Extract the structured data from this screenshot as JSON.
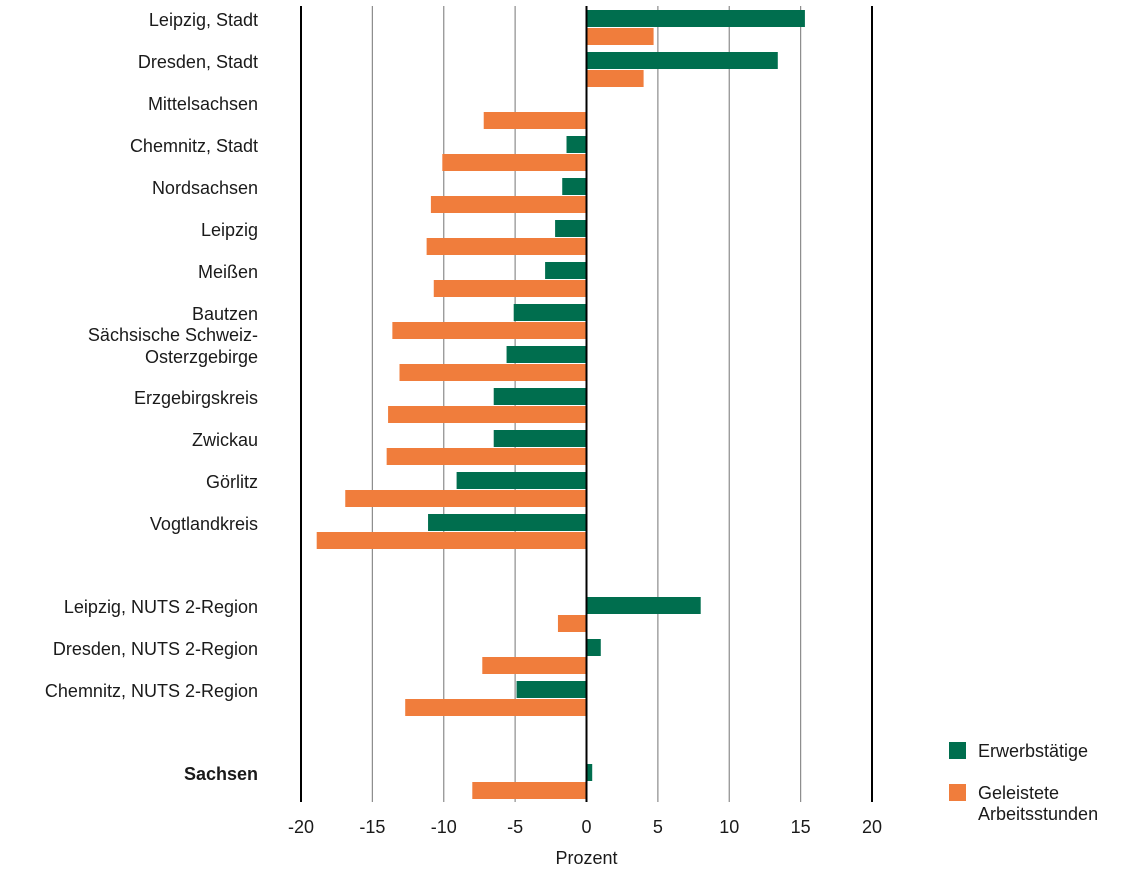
{
  "chart_data": {
    "type": "bar",
    "orientation": "horizontal",
    "xlabel": "Prozent",
    "xlim": [
      -20,
      20
    ],
    "xticks": [
      -20,
      -15,
      -10,
      -5,
      0,
      5,
      10,
      15,
      20
    ],
    "grid": true,
    "legend_position": "bottom-right",
    "categories": [
      {
        "label": "Leipzig, Stadt",
        "bold": false
      },
      {
        "label": "Dresden, Stadt",
        "bold": false
      },
      {
        "label": "Mittelsachsen",
        "bold": false
      },
      {
        "label": "Chemnitz, Stadt",
        "bold": false
      },
      {
        "label": "Nordsachsen",
        "bold": false
      },
      {
        "label": "Leipzig",
        "bold": false
      },
      {
        "label": "Meißen",
        "bold": false
      },
      {
        "label": "Bautzen",
        "bold": false
      },
      {
        "label": "Sächsische Schweiz-\nOsterzgebirge",
        "bold": false
      },
      {
        "label": "Erzgebirgskreis",
        "bold": false
      },
      {
        "label": "Zwickau",
        "bold": false
      },
      {
        "label": "Görlitz",
        "bold": false
      },
      {
        "label": "Vogtlandkreis",
        "bold": false
      },
      {
        "label": "Leipzig, NUTS 2-Region",
        "bold": false
      },
      {
        "label": "Dresden, NUTS 2-Region",
        "bold": false
      },
      {
        "label": "Chemnitz, NUTS 2-Region",
        "bold": false
      },
      {
        "label": "Sachsen",
        "bold": true
      }
    ],
    "series": [
      {
        "name": "Erwerbstätige",
        "color": "#006e4e",
        "values": [
          15.3,
          13.4,
          0.0,
          -1.4,
          -1.7,
          -2.2,
          -2.9,
          -5.1,
          -5.6,
          -6.5,
          -6.5,
          -9.1,
          -11.1,
          8.0,
          1.0,
          -4.9,
          0.4
        ]
      },
      {
        "name": "Geleistete\nArbeitsstunden",
        "color": "#f07d3c",
        "values": [
          4.7,
          4.0,
          -7.2,
          -10.1,
          -10.9,
          -11.2,
          -10.7,
          -13.6,
          -13.1,
          -13.9,
          -14.0,
          -16.9,
          -18.9,
          -2.0,
          -7.3,
          -12.7,
          -8.0
        ]
      }
    ]
  }
}
